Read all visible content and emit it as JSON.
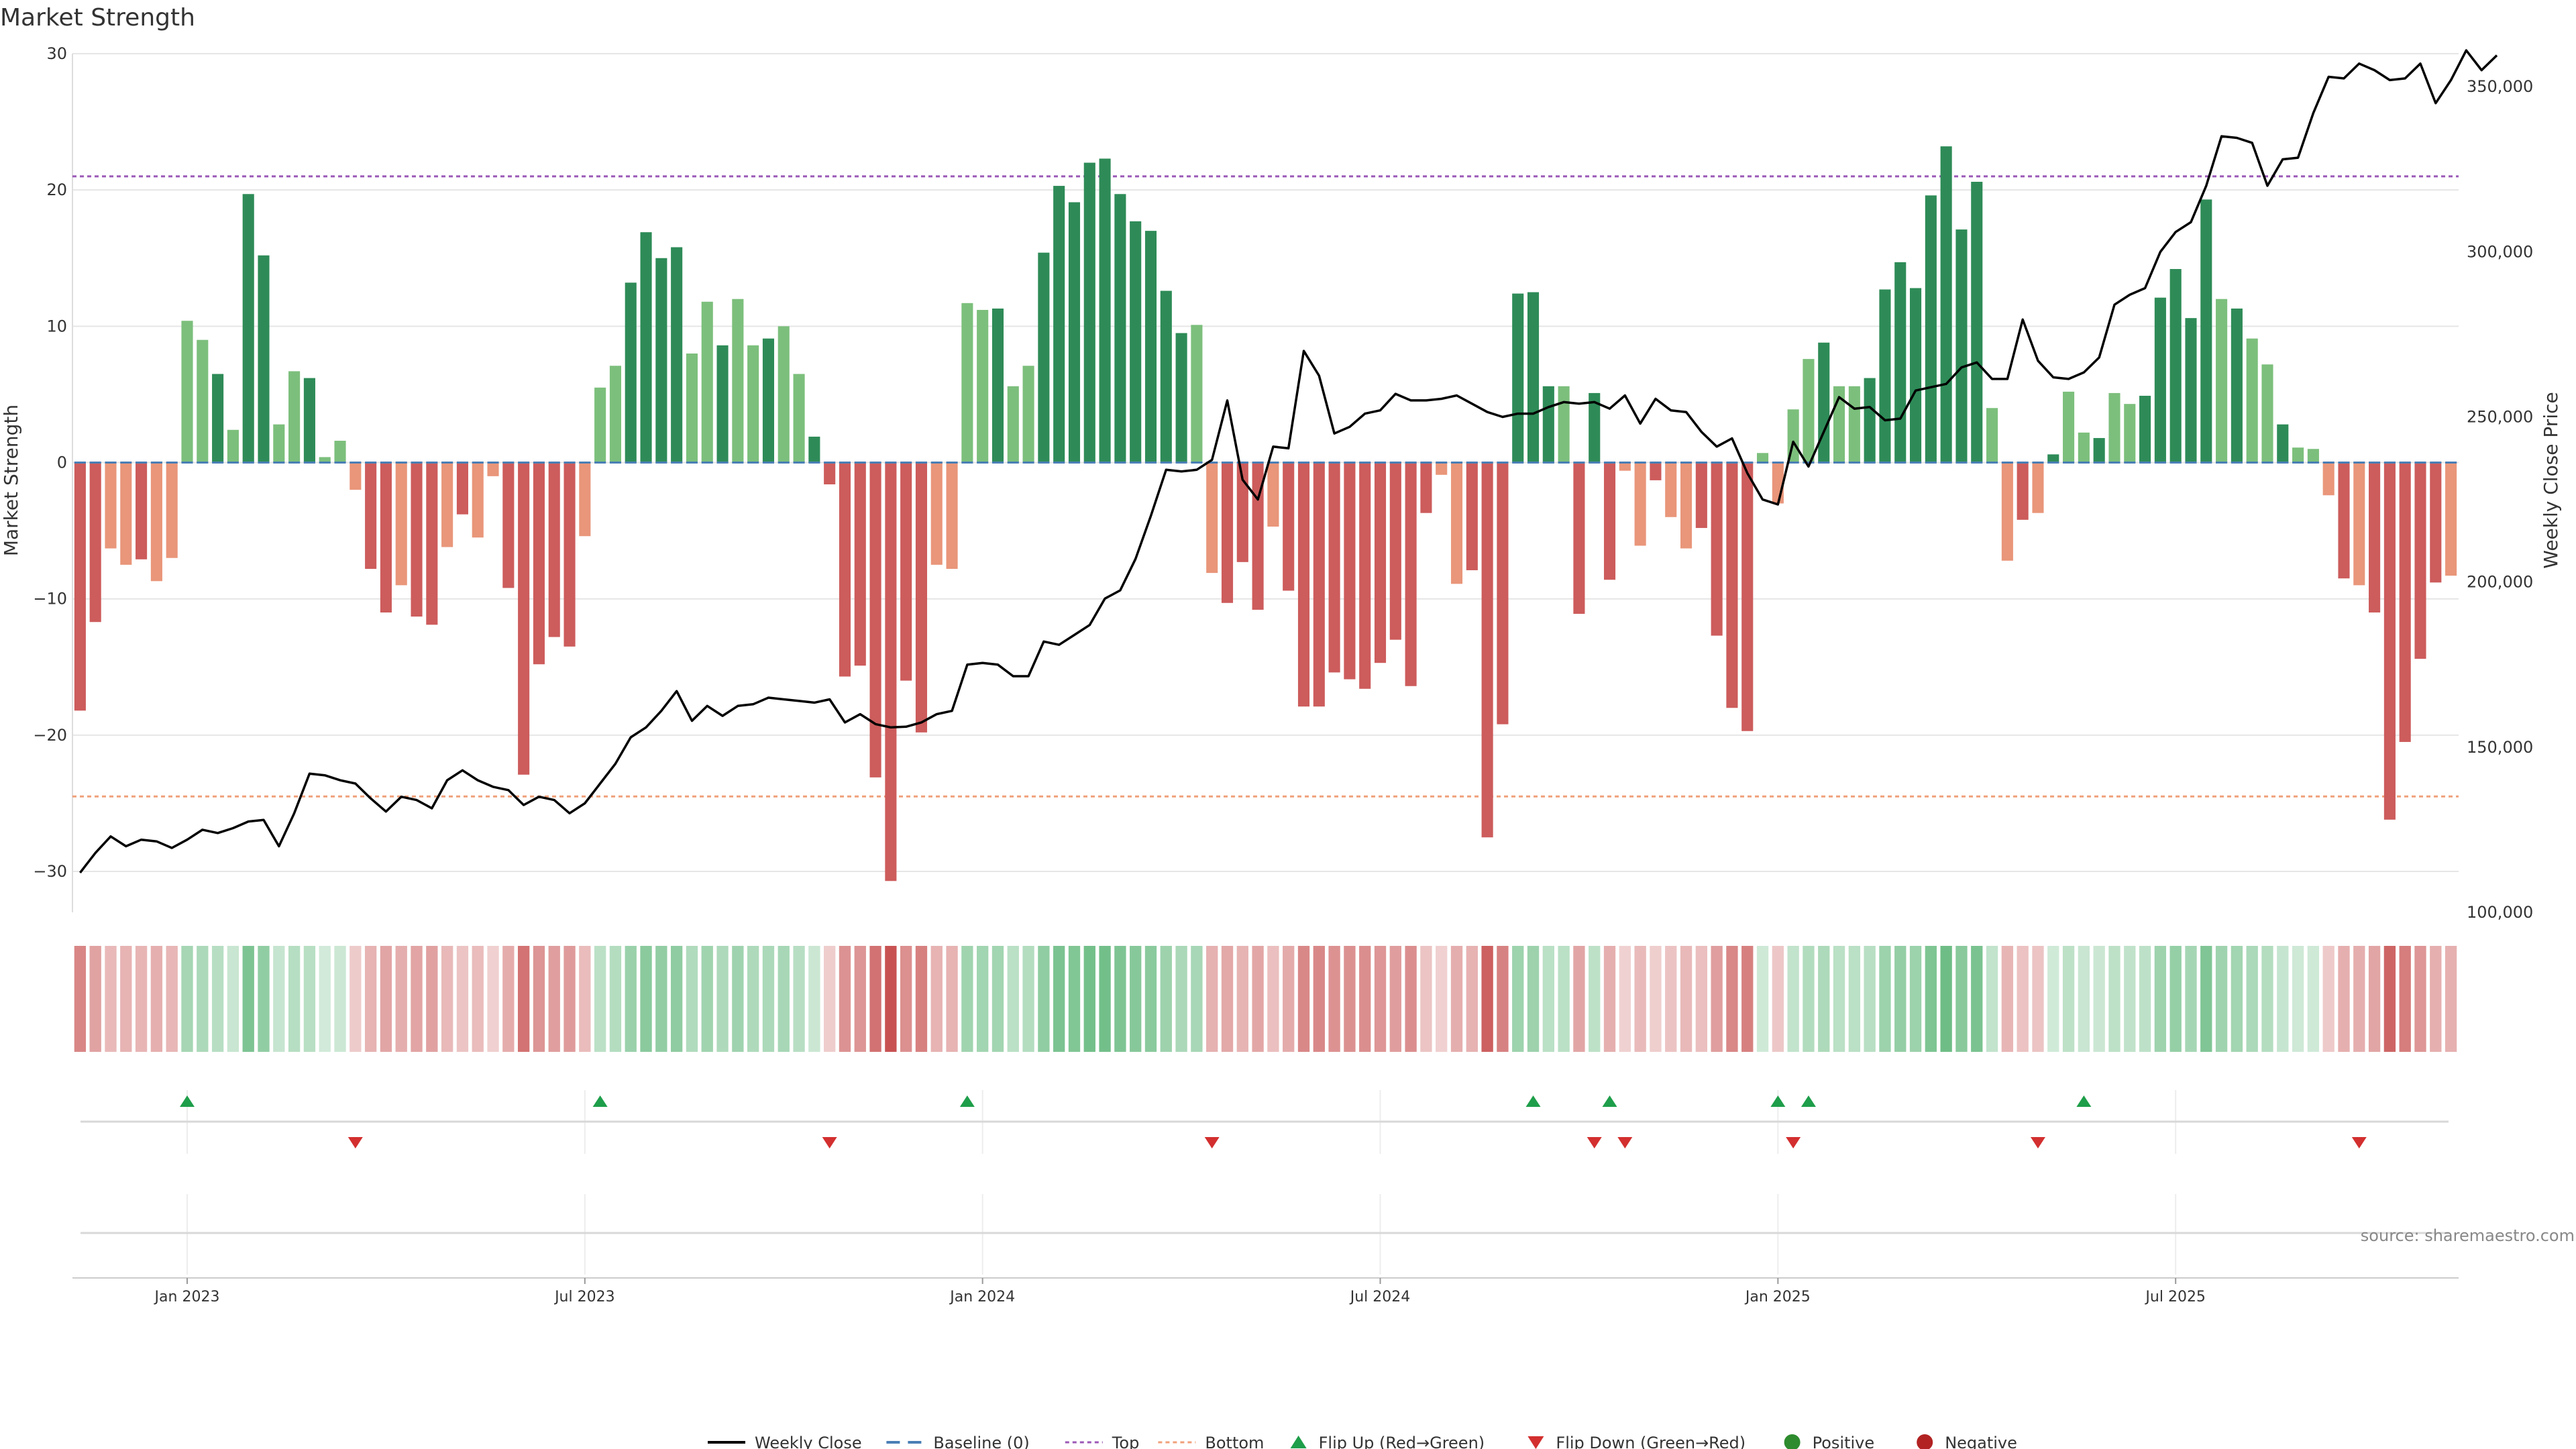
{
  "chart_data": {
    "type": "bar",
    "title": "Market Strength",
    "ylabel_left": "Market Strength",
    "ylabel_right": "Weekly Close Price",
    "ylim_left": [
      -33,
      30
    ],
    "ylim_right": [
      100000,
      360000
    ],
    "yticks_left": [
      30,
      20,
      10,
      0,
      -10,
      -20,
      -30
    ],
    "ytick_labels_left": [
      "30",
      "20",
      "10",
      "0",
      "−10",
      "−20",
      "−30"
    ],
    "yticks_right": [
      350000,
      300000,
      250000,
      200000,
      150000,
      100000
    ],
    "ytick_labels_right": [
      "350,000",
      "300,000",
      "250,000",
      "200,000",
      "150,000",
      "100,000"
    ],
    "top_threshold": 21,
    "bottom_threshold": -24.5,
    "x_ticks": [
      {
        "index": 7,
        "label": "Jan 2023"
      },
      {
        "index": 33,
        "label": "Jul 2023"
      },
      {
        "index": 59,
        "label": "Jan 2024"
      },
      {
        "index": 85,
        "label": "Jul 2024"
      },
      {
        "index": 111,
        "label": "Jan 2025"
      },
      {
        "index": 137,
        "label": "Jul 2025"
      }
    ],
    "strength": [
      -18.2,
      -11.7,
      -6.3,
      -7.5,
      -7.1,
      -8.7,
      -7,
      10.4,
      9,
      6.5,
      2.4,
      19.7,
      15.2,
      2.8,
      6.7,
      6.2,
      0.4,
      1.6,
      -2,
      -7.8,
      -11,
      -9,
      -11.3,
      -11.9,
      -6.2,
      -3.8,
      -5.5,
      -1,
      -9.2,
      -22.9,
      -14.8,
      -12.8,
      -13.5,
      -5.4,
      5.5,
      7.1,
      13.2,
      16.9,
      15,
      15.8,
      8,
      11.8,
      8.6,
      12,
      8.6,
      9.1,
      10,
      6.5,
      1.9,
      -1.6,
      -15.7,
      -14.9,
      -23.1,
      -30.7,
      -16,
      -19.8,
      -7.5,
      -7.8,
      11.7,
      11.2,
      11.3,
      5.6,
      7.1,
      15.4,
      20.3,
      19.1,
      22,
      22.3,
      19.7,
      17.7,
      17,
      12.6,
      9.5,
      10.1,
      -8.1,
      -10.3,
      -7.3,
      -10.8,
      -4.7,
      -9.4,
      -17.9,
      -17.9,
      -15.4,
      -15.9,
      -16.6,
      -14.7,
      -13,
      -16.4,
      -3.7,
      -0.9,
      -8.9,
      -7.9,
      -27.5,
      -19.2,
      12.4,
      12.5,
      5.6,
      5.6,
      -11.1,
      5.1,
      -8.6,
      -0.6,
      -6.1,
      -1.3,
      -4,
      -6.3,
      -4.8,
      -12.7,
      -18,
      -19.7,
      0.7,
      -3,
      3.9,
      7.6,
      8.8,
      5.6,
      5.6,
      6.2,
      12.7,
      14.7,
      12.8,
      19.6,
      23.2,
      17.1,
      20.6,
      4,
      -7.2,
      -4.2,
      -3.7,
      0.6,
      5.2,
      2.2,
      1.8,
      5.1,
      4.3,
      4.9,
      12.1,
      14.2,
      10.6,
      19.3,
      12,
      11.3,
      9.1,
      7.2,
      2.8,
      1.1,
      1,
      -2.4,
      -8.5,
      -9,
      -11,
      -26.2,
      -20.5,
      -14.4,
      -8.8,
      -8.3
    ],
    "weekly_close": [
      112000,
      118000,
      123000,
      120000,
      122000,
      121500,
      119500,
      122000,
      125000,
      124000,
      125500,
      127500,
      128000,
      120000,
      130000,
      142000,
      141500,
      140000,
      139000,
      134500,
      130500,
      135000,
      134000,
      131500,
      140000,
      143000,
      140000,
      138000,
      137000,
      132500,
      135000,
      134000,
      130000,
      133000,
      139000,
      145000,
      153000,
      156000,
      161000,
      167000,
      158000,
      162500,
      159500,
      162500,
      163000,
      165000,
      164500,
      164000,
      163500,
      164500,
      157500,
      160000,
      157000,
      156000,
      156200,
      157500,
      160000,
      161000,
      175000,
      175500,
      175000,
      171500,
      171500,
      182000,
      181000,
      184000,
      187000,
      195000,
      197500,
      207000,
      220000,
      234000,
      233500,
      234000,
      237000,
      255000,
      231000,
      225000,
      241000,
      240500,
      270000,
      262500,
      245000,
      247000,
      251000,
      252000,
      257000,
      255000,
      255000,
      255500,
      256500,
      254000,
      251500,
      250000,
      251000,
      251000,
      253000,
      254500,
      254000,
      254500,
      252500,
      256500,
      248000,
      255500,
      252000,
      251500,
      245500,
      241000,
      243500,
      233000,
      225000,
      223500,
      242500,
      235000,
      245500,
      256000,
      252500,
      253000,
      249000,
      249500,
      258000,
      259000,
      260000,
      265000,
      266500,
      261500,
      261500,
      279500,
      267000,
      262000,
      261500,
      263500,
      268000,
      284000,
      287000,
      289000,
      300000,
      306000,
      309000,
      320000,
      335000,
      334500,
      333000,
      320000,
      328000,
      328500,
      342000,
      353000,
      352500,
      357000,
      355000,
      352000,
      352500,
      357000,
      345000,
      352000,
      361000,
      355000,
      359500
    ],
    "flip_up_indices": [
      7,
      34,
      58,
      95,
      100,
      111,
      113,
      131
    ],
    "flip_down_indices": [
      18,
      49,
      74,
      99,
      101,
      112,
      128,
      149
    ],
    "legend": [
      "Weekly Close",
      "Baseline (0)",
      "Top",
      "Bottom",
      "Flip Up (Red→Green)",
      "Flip Down (Green→Red)",
      "Positive",
      "Negative"
    ],
    "source": "source: sharemaestro.com"
  },
  "colors": {
    "pos_strong": "#2e8b57",
    "pos_light": "#7cbf7c",
    "neg_strong": "#cd5c5c",
    "neg_light": "#e9967a",
    "line": "#000000",
    "top_line": "#9b59b6",
    "bottom_line": "#f0a07a",
    "baseline": "#4a7fb5",
    "flip_up": "#1e9e4a",
    "flip_down": "#d32f2f",
    "positive_dot": "#2e8b2e",
    "negative_dot": "#b22222",
    "grid": "#e6e6e6"
  }
}
